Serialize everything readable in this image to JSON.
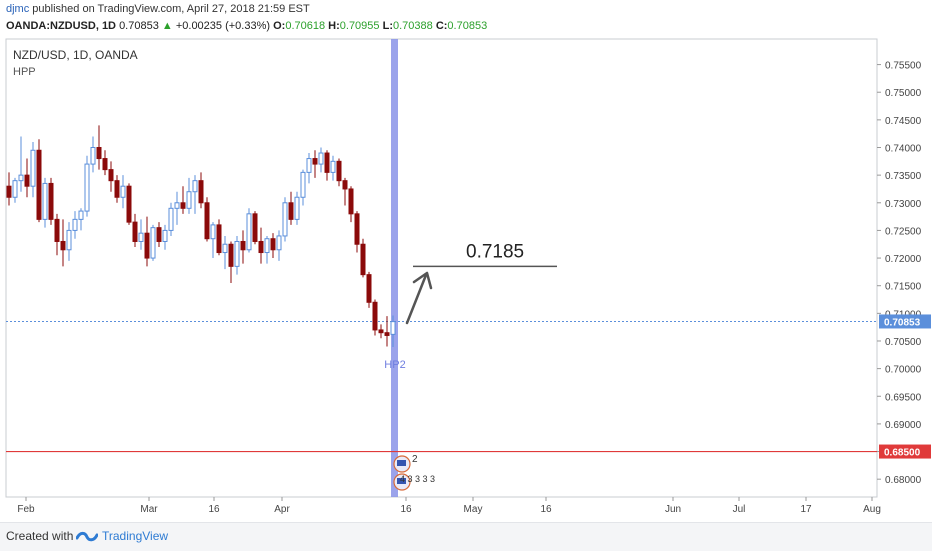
{
  "header": {
    "author": "djmc",
    "published_text": "published on TradingView.com, April 27, 2018 21:59 EST",
    "symbol": "OANDA:NZDUSD, 1D",
    "price": "0.70853",
    "change": "+0.00235 (+0.33%)",
    "open_label": "O:",
    "open": "0.70618",
    "high_label": "H:",
    "high": "0.70955",
    "low_label": "L:",
    "low": "0.70388",
    "close_label": "C:",
    "close": "0.70853"
  },
  "footer": {
    "created_with": "Created with",
    "brand": "TradingView"
  },
  "colors": {
    "bull": "#5b8fdb",
    "bear": "#8b0a0a",
    "support": "#e03a3a",
    "last_price": "#5b8fdb",
    "vertical_band": "#8a93e8"
  },
  "chart_data": {
    "type": "candlestick",
    "title": "NZD/USD, 1D, OANDA",
    "indicator": "HPP",
    "y_range": [
      0.6775,
      0.758
    ],
    "y_ticks": [
      "0.75500",
      "0.75000",
      "0.74500",
      "0.74000",
      "0.73500",
      "0.73000",
      "0.72500",
      "0.72000",
      "0.71500",
      "0.71000",
      "0.70500",
      "0.70000",
      "0.69500",
      "0.69000",
      "0.68500",
      "0.68000"
    ],
    "x_ticks": [
      "Feb",
      "Mar",
      "16",
      "Apr",
      "16",
      "May",
      "16",
      "Jun",
      "Jul",
      "17",
      "Aug",
      "16"
    ],
    "candles": [
      {
        "o": 0.733,
        "h": 0.7355,
        "l": 0.7295,
        "c": 0.731
      },
      {
        "o": 0.731,
        "h": 0.7345,
        "l": 0.73,
        "c": 0.734
      },
      {
        "o": 0.734,
        "h": 0.742,
        "l": 0.732,
        "c": 0.735
      },
      {
        "o": 0.735,
        "h": 0.738,
        "l": 0.731,
        "c": 0.733
      },
      {
        "o": 0.733,
        "h": 0.741,
        "l": 0.731,
        "c": 0.7395
      },
      {
        "o": 0.7395,
        "h": 0.7415,
        "l": 0.7265,
        "c": 0.727
      },
      {
        "o": 0.727,
        "h": 0.7345,
        "l": 0.7255,
        "c": 0.7335
      },
      {
        "o": 0.7335,
        "h": 0.7345,
        "l": 0.726,
        "c": 0.727
      },
      {
        "o": 0.727,
        "h": 0.728,
        "l": 0.7205,
        "c": 0.723
      },
      {
        "o": 0.723,
        "h": 0.727,
        "l": 0.7185,
        "c": 0.7215
      },
      {
        "o": 0.7215,
        "h": 0.7265,
        "l": 0.7195,
        "c": 0.725
      },
      {
        "o": 0.725,
        "h": 0.7285,
        "l": 0.7235,
        "c": 0.727
      },
      {
        "o": 0.727,
        "h": 0.729,
        "l": 0.725,
        "c": 0.7285
      },
      {
        "o": 0.7285,
        "h": 0.7385,
        "l": 0.7275,
        "c": 0.737
      },
      {
        "o": 0.737,
        "h": 0.742,
        "l": 0.7355,
        "c": 0.74
      },
      {
        "o": 0.74,
        "h": 0.744,
        "l": 0.736,
        "c": 0.738
      },
      {
        "o": 0.738,
        "h": 0.7395,
        "l": 0.735,
        "c": 0.736
      },
      {
        "o": 0.736,
        "h": 0.7375,
        "l": 0.732,
        "c": 0.734
      },
      {
        "o": 0.734,
        "h": 0.735,
        "l": 0.73,
        "c": 0.731
      },
      {
        "o": 0.731,
        "h": 0.735,
        "l": 0.729,
        "c": 0.733
      },
      {
        "o": 0.733,
        "h": 0.7335,
        "l": 0.726,
        "c": 0.7265
      },
      {
        "o": 0.7265,
        "h": 0.728,
        "l": 0.722,
        "c": 0.723
      },
      {
        "o": 0.723,
        "h": 0.727,
        "l": 0.7215,
        "c": 0.7245
      },
      {
        "o": 0.7245,
        "h": 0.7275,
        "l": 0.7185,
        "c": 0.72
      },
      {
        "o": 0.72,
        "h": 0.726,
        "l": 0.7195,
        "c": 0.7255
      },
      {
        "o": 0.7255,
        "h": 0.7265,
        "l": 0.722,
        "c": 0.723
      },
      {
        "o": 0.723,
        "h": 0.726,
        "l": 0.7215,
        "c": 0.725
      },
      {
        "o": 0.725,
        "h": 0.73,
        "l": 0.724,
        "c": 0.729
      },
      {
        "o": 0.729,
        "h": 0.732,
        "l": 0.726,
        "c": 0.73
      },
      {
        "o": 0.73,
        "h": 0.733,
        "l": 0.728,
        "c": 0.729
      },
      {
        "o": 0.729,
        "h": 0.7345,
        "l": 0.728,
        "c": 0.732
      },
      {
        "o": 0.732,
        "h": 0.735,
        "l": 0.728,
        "c": 0.734
      },
      {
        "o": 0.734,
        "h": 0.7355,
        "l": 0.729,
        "c": 0.73
      },
      {
        "o": 0.73,
        "h": 0.731,
        "l": 0.723,
        "c": 0.7235
      },
      {
        "o": 0.7235,
        "h": 0.7265,
        "l": 0.72,
        "c": 0.726
      },
      {
        "o": 0.726,
        "h": 0.727,
        "l": 0.7205,
        "c": 0.721
      },
      {
        "o": 0.721,
        "h": 0.724,
        "l": 0.718,
        "c": 0.7225
      },
      {
        "o": 0.7225,
        "h": 0.723,
        "l": 0.7155,
        "c": 0.7185
      },
      {
        "o": 0.7185,
        "h": 0.724,
        "l": 0.717,
        "c": 0.723
      },
      {
        "o": 0.723,
        "h": 0.725,
        "l": 0.719,
        "c": 0.7215
      },
      {
        "o": 0.7215,
        "h": 0.729,
        "l": 0.721,
        "c": 0.728
      },
      {
        "o": 0.728,
        "h": 0.7285,
        "l": 0.7225,
        "c": 0.723
      },
      {
        "o": 0.723,
        "h": 0.7255,
        "l": 0.719,
        "c": 0.721
      },
      {
        "o": 0.721,
        "h": 0.724,
        "l": 0.719,
        "c": 0.7235
      },
      {
        "o": 0.7235,
        "h": 0.7245,
        "l": 0.72,
        "c": 0.7215
      },
      {
        "o": 0.7215,
        "h": 0.725,
        "l": 0.7195,
        "c": 0.724
      },
      {
        "o": 0.724,
        "h": 0.731,
        "l": 0.723,
        "c": 0.73
      },
      {
        "o": 0.73,
        "h": 0.732,
        "l": 0.726,
        "c": 0.727
      },
      {
        "o": 0.727,
        "h": 0.732,
        "l": 0.726,
        "c": 0.731
      },
      {
        "o": 0.731,
        "h": 0.736,
        "l": 0.7295,
        "c": 0.7355
      },
      {
        "o": 0.7355,
        "h": 0.739,
        "l": 0.7335,
        "c": 0.738
      },
      {
        "o": 0.738,
        "h": 0.7395,
        "l": 0.7345,
        "c": 0.737
      },
      {
        "o": 0.737,
        "h": 0.74,
        "l": 0.7355,
        "c": 0.739
      },
      {
        "o": 0.739,
        "h": 0.7395,
        "l": 0.734,
        "c": 0.7355
      },
      {
        "o": 0.7355,
        "h": 0.7385,
        "l": 0.734,
        "c": 0.7375
      },
      {
        "o": 0.7375,
        "h": 0.738,
        "l": 0.733,
        "c": 0.734
      },
      {
        "o": 0.734,
        "h": 0.7345,
        "l": 0.7295,
        "c": 0.7325
      },
      {
        "o": 0.7325,
        "h": 0.733,
        "l": 0.7265,
        "c": 0.728
      },
      {
        "o": 0.728,
        "h": 0.7285,
        "l": 0.721,
        "c": 0.7225
      },
      {
        "o": 0.7225,
        "h": 0.7235,
        "l": 0.7165,
        "c": 0.717
      },
      {
        "o": 0.717,
        "h": 0.7175,
        "l": 0.711,
        "c": 0.712
      },
      {
        "o": 0.712,
        "h": 0.7125,
        "l": 0.706,
        "c": 0.707
      },
      {
        "o": 0.707,
        "h": 0.708,
        "l": 0.7055,
        "c": 0.7065
      },
      {
        "o": 0.7065,
        "h": 0.7095,
        "l": 0.704,
        "c": 0.706
      },
      {
        "o": 0.7062,
        "h": 0.7096,
        "l": 0.7039,
        "c": 0.7085
      }
    ],
    "last_price": {
      "value": 0.70853,
      "label": "0.70853"
    },
    "support": {
      "value": 0.685,
      "label": "0.68500"
    },
    "target": {
      "value": 0.7185,
      "label": "0.7185"
    },
    "pivot_label": "HP2",
    "event_markers": [
      "2",
      "4 3 3 3 3"
    ]
  }
}
